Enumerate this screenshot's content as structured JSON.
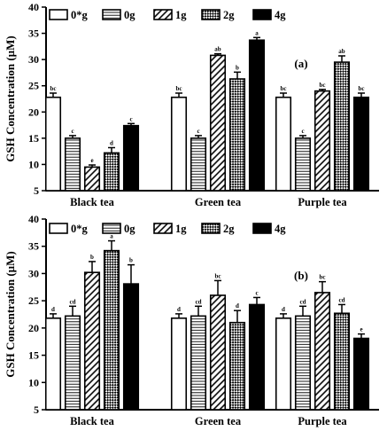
{
  "chart_data": [
    {
      "type": "bar",
      "panel_label": "(a)",
      "ylabel": "GSH Concentration (µM)",
      "ylim": [
        5,
        40
      ],
      "yticks": [
        5,
        10,
        15,
        20,
        25,
        30,
        35,
        40
      ],
      "categories": [
        "Black tea",
        "Green tea",
        "Purple tea"
      ],
      "legend_position": "top",
      "series": [
        {
          "name": "0*g",
          "pattern": "white",
          "values": [
            22.8,
            22.8,
            22.8
          ],
          "errors": [
            0.8,
            0.8,
            0.8
          ],
          "letters": [
            "bc",
            "bc",
            "bc"
          ]
        },
        {
          "name": "0g",
          "pattern": "hlines",
          "values": [
            15.0,
            15.0,
            15.0
          ],
          "errors": [
            0.5,
            0.5,
            0.5
          ],
          "letters": [
            "c",
            "c",
            "c"
          ]
        },
        {
          "name": "1g",
          "pattern": "diag",
          "values": [
            9.5,
            30.8,
            24.0
          ],
          "errors": [
            0.4,
            0.3,
            0.3
          ],
          "letters": [
            "e",
            "ab",
            "bc"
          ]
        },
        {
          "name": "2g",
          "pattern": "check",
          "values": [
            12.2,
            26.3,
            29.5
          ],
          "errors": [
            1.0,
            1.3,
            1.2
          ],
          "letters": [
            "d",
            "b",
            "ab"
          ]
        },
        {
          "name": "4g",
          "pattern": "black",
          "values": [
            17.4,
            33.7,
            22.8
          ],
          "errors": [
            0.4,
            0.5,
            0.8
          ],
          "letters": [
            "c",
            "a",
            "bc"
          ]
        }
      ]
    },
    {
      "type": "bar",
      "panel_label": "(b)",
      "ylabel": "GSH Concentration (µM)",
      "ylim": [
        5,
        40
      ],
      "yticks": [
        5,
        10,
        15,
        20,
        25,
        30,
        35,
        40
      ],
      "categories": [
        "Black tea",
        "Green tea",
        "Purple tea"
      ],
      "legend_position": "top",
      "series": [
        {
          "name": "0*g",
          "pattern": "white",
          "values": [
            21.8,
            21.8,
            21.8
          ],
          "errors": [
            0.8,
            0.8,
            0.8
          ],
          "letters": [
            "d",
            "d",
            "d"
          ]
        },
        {
          "name": "0g",
          "pattern": "hlines",
          "values": [
            22.2,
            22.2,
            22.2
          ],
          "errors": [
            1.8,
            1.8,
            1.8
          ],
          "letters": [
            "cd",
            "cd",
            "cd"
          ]
        },
        {
          "name": "1g",
          "pattern": "diag",
          "values": [
            30.2,
            26.0,
            26.5
          ],
          "errors": [
            2.0,
            2.7,
            2.0
          ],
          "letters": [
            "b",
            "bc",
            "bc"
          ]
        },
        {
          "name": "2g",
          "pattern": "check",
          "values": [
            34.2,
            21.0,
            22.7
          ],
          "errors": [
            1.8,
            2.2,
            1.6
          ],
          "letters": [
            "a",
            "d",
            "cd"
          ]
        },
        {
          "name": "4g",
          "pattern": "black",
          "values": [
            28.1,
            24.3,
            18.1
          ],
          "errors": [
            3.5,
            1.3,
            0.8
          ],
          "letters": [
            "b",
            "c",
            "e"
          ]
        }
      ]
    }
  ]
}
